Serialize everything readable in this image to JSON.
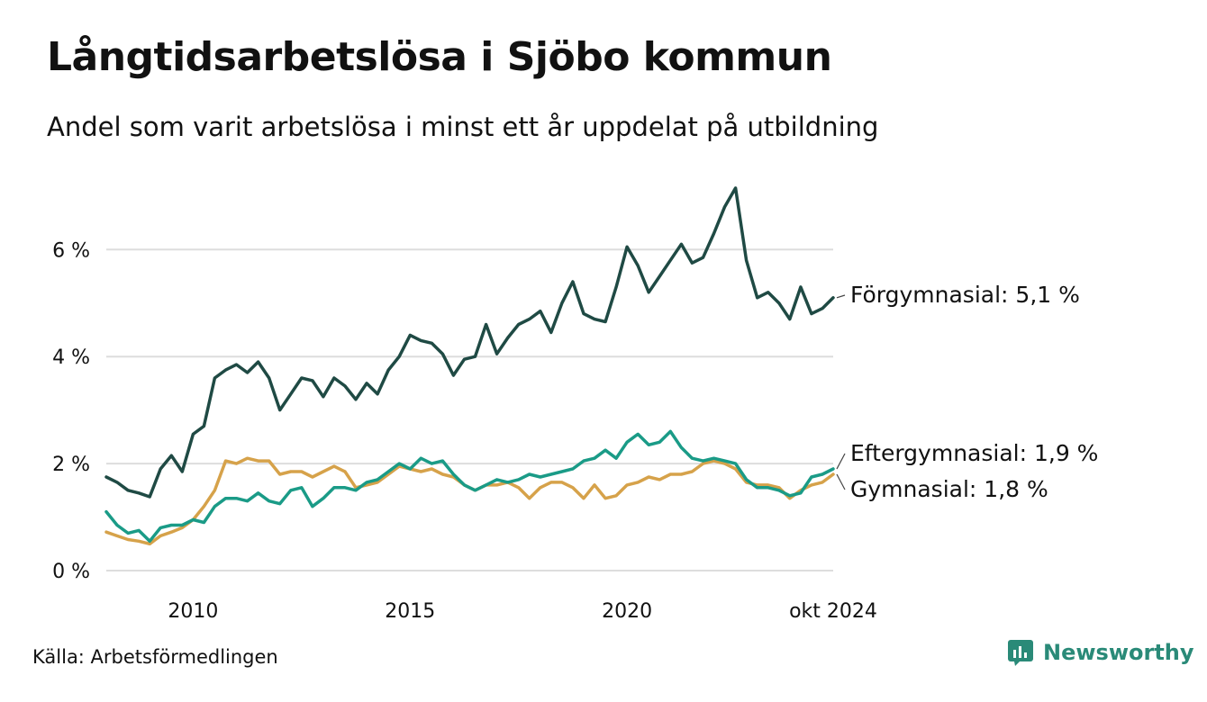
{
  "title": "Långtidsarbetslösa i Sjöbo kommun",
  "subtitle": "Andel som varit arbetslösa i minst ett år uppdelat på utbildning",
  "source": "Källa: Arbetsförmedlingen",
  "brand": "Newsworthy",
  "colors": {
    "forgymnasial": "#1f4a44",
    "eftergymnasial": "#1a9b87",
    "gymnasial": "#d6a24a",
    "grid": "#dddddd",
    "brand": "#2a8a78"
  },
  "chart_data": {
    "type": "line",
    "title": "Långtidsarbetslösa i Sjöbo kommun",
    "xlabel": "",
    "ylabel": "",
    "x_unit": "decimal year",
    "xlim": [
      2008.0,
      2024.75
    ],
    "ylim": [
      0,
      7.3
    ],
    "y_ticks": [
      0,
      2,
      4,
      6
    ],
    "y_tick_labels": [
      "0 %",
      "2 %",
      "4 %",
      "6 %"
    ],
    "x_ticks": [
      2010,
      2015,
      2020,
      2024.75
    ],
    "x_tick_labels": [
      "2010",
      "2015",
      "2020",
      "okt 2024"
    ],
    "grid": "horizontal",
    "legend": "direct labels at line ends",
    "series": [
      {
        "name": "Förgymnasial",
        "end_label": "Förgymnasial: 5,1 %",
        "color": "#1f4a44",
        "points": [
          [
            2008.0,
            1.75
          ],
          [
            2008.25,
            1.65
          ],
          [
            2008.5,
            1.5
          ],
          [
            2008.75,
            1.45
          ],
          [
            2009.0,
            1.38
          ],
          [
            2009.25,
            1.9
          ],
          [
            2009.5,
            2.15
          ],
          [
            2009.75,
            1.85
          ],
          [
            2010.0,
            2.55
          ],
          [
            2010.25,
            2.7
          ],
          [
            2010.5,
            3.6
          ],
          [
            2010.75,
            3.75
          ],
          [
            2011.0,
            3.85
          ],
          [
            2011.25,
            3.7
          ],
          [
            2011.5,
            3.9
          ],
          [
            2011.75,
            3.6
          ],
          [
            2012.0,
            3.0
          ],
          [
            2012.25,
            3.3
          ],
          [
            2012.5,
            3.6
          ],
          [
            2012.75,
            3.55
          ],
          [
            2013.0,
            3.25
          ],
          [
            2013.25,
            3.6
          ],
          [
            2013.5,
            3.45
          ],
          [
            2013.75,
            3.2
          ],
          [
            2014.0,
            3.5
          ],
          [
            2014.25,
            3.3
          ],
          [
            2014.5,
            3.75
          ],
          [
            2014.75,
            4.0
          ],
          [
            2015.0,
            4.4
          ],
          [
            2015.25,
            4.3
          ],
          [
            2015.5,
            4.25
          ],
          [
            2015.75,
            4.05
          ],
          [
            2016.0,
            3.65
          ],
          [
            2016.25,
            3.95
          ],
          [
            2016.5,
            4.0
          ],
          [
            2016.75,
            4.6
          ],
          [
            2017.0,
            4.05
          ],
          [
            2017.25,
            4.35
          ],
          [
            2017.5,
            4.6
          ],
          [
            2017.75,
            4.7
          ],
          [
            2018.0,
            4.85
          ],
          [
            2018.25,
            4.45
          ],
          [
            2018.5,
            5.0
          ],
          [
            2018.75,
            5.4
          ],
          [
            2019.0,
            4.8
          ],
          [
            2019.25,
            4.7
          ],
          [
            2019.5,
            4.65
          ],
          [
            2019.75,
            5.3
          ],
          [
            2020.0,
            6.05
          ],
          [
            2020.25,
            5.7
          ],
          [
            2020.5,
            5.2
          ],
          [
            2020.75,
            5.5
          ],
          [
            2021.0,
            5.8
          ],
          [
            2021.25,
            6.1
          ],
          [
            2021.5,
            5.75
          ],
          [
            2021.75,
            5.85
          ],
          [
            2022.0,
            6.3
          ],
          [
            2022.25,
            6.8
          ],
          [
            2022.5,
            7.15
          ],
          [
            2022.75,
            5.8
          ],
          [
            2023.0,
            5.1
          ],
          [
            2023.25,
            5.2
          ],
          [
            2023.5,
            5.0
          ],
          [
            2023.75,
            4.7
          ],
          [
            2024.0,
            5.3
          ],
          [
            2024.25,
            4.8
          ],
          [
            2024.5,
            4.9
          ],
          [
            2024.75,
            5.1
          ]
        ]
      },
      {
        "name": "Eftergymnasial",
        "end_label": "Eftergymnasial: 1,9 %",
        "color": "#1a9b87",
        "points": [
          [
            2008.0,
            1.1
          ],
          [
            2008.25,
            0.85
          ],
          [
            2008.5,
            0.7
          ],
          [
            2008.75,
            0.75
          ],
          [
            2009.0,
            0.55
          ],
          [
            2009.25,
            0.8
          ],
          [
            2009.5,
            0.85
          ],
          [
            2009.75,
            0.85
          ],
          [
            2010.0,
            0.95
          ],
          [
            2010.25,
            0.9
          ],
          [
            2010.5,
            1.2
          ],
          [
            2010.75,
            1.35
          ],
          [
            2011.0,
            1.35
          ],
          [
            2011.25,
            1.3
          ],
          [
            2011.5,
            1.45
          ],
          [
            2011.75,
            1.3
          ],
          [
            2012.0,
            1.25
          ],
          [
            2012.25,
            1.5
          ],
          [
            2012.5,
            1.55
          ],
          [
            2012.75,
            1.2
          ],
          [
            2013.0,
            1.35
          ],
          [
            2013.25,
            1.55
          ],
          [
            2013.5,
            1.55
          ],
          [
            2013.75,
            1.5
          ],
          [
            2014.0,
            1.65
          ],
          [
            2014.25,
            1.7
          ],
          [
            2014.5,
            1.85
          ],
          [
            2014.75,
            2.0
          ],
          [
            2015.0,
            1.9
          ],
          [
            2015.25,
            2.1
          ],
          [
            2015.5,
            2.0
          ],
          [
            2015.75,
            2.05
          ],
          [
            2016.0,
            1.8
          ],
          [
            2016.25,
            1.6
          ],
          [
            2016.5,
            1.5
          ],
          [
            2016.75,
            1.6
          ],
          [
            2017.0,
            1.7
          ],
          [
            2017.25,
            1.65
          ],
          [
            2017.5,
            1.7
          ],
          [
            2017.75,
            1.8
          ],
          [
            2018.0,
            1.75
          ],
          [
            2018.25,
            1.8
          ],
          [
            2018.5,
            1.85
          ],
          [
            2018.75,
            1.9
          ],
          [
            2019.0,
            2.05
          ],
          [
            2019.25,
            2.1
          ],
          [
            2019.5,
            2.25
          ],
          [
            2019.75,
            2.1
          ],
          [
            2020.0,
            2.4
          ],
          [
            2020.25,
            2.55
          ],
          [
            2020.5,
            2.35
          ],
          [
            2020.75,
            2.4
          ],
          [
            2021.0,
            2.6
          ],
          [
            2021.25,
            2.3
          ],
          [
            2021.5,
            2.1
          ],
          [
            2021.75,
            2.05
          ],
          [
            2022.0,
            2.1
          ],
          [
            2022.25,
            2.05
          ],
          [
            2022.5,
            2.0
          ],
          [
            2022.75,
            1.7
          ],
          [
            2023.0,
            1.55
          ],
          [
            2023.25,
            1.55
          ],
          [
            2023.5,
            1.5
          ],
          [
            2023.75,
            1.4
          ],
          [
            2024.0,
            1.45
          ],
          [
            2024.25,
            1.75
          ],
          [
            2024.5,
            1.8
          ],
          [
            2024.75,
            1.9
          ]
        ]
      },
      {
        "name": "Gymnasial",
        "end_label": "Gymnasial: 1,8 %",
        "color": "#d6a24a",
        "points": [
          [
            2008.0,
            0.72
          ],
          [
            2008.25,
            0.65
          ],
          [
            2008.5,
            0.58
          ],
          [
            2008.75,
            0.55
          ],
          [
            2009.0,
            0.5
          ],
          [
            2009.25,
            0.65
          ],
          [
            2009.5,
            0.72
          ],
          [
            2009.75,
            0.8
          ],
          [
            2010.0,
            0.95
          ],
          [
            2010.25,
            1.2
          ],
          [
            2010.5,
            1.5
          ],
          [
            2010.75,
            2.05
          ],
          [
            2011.0,
            2.0
          ],
          [
            2011.25,
            2.1
          ],
          [
            2011.5,
            2.05
          ],
          [
            2011.75,
            2.05
          ],
          [
            2012.0,
            1.8
          ],
          [
            2012.25,
            1.85
          ],
          [
            2012.5,
            1.85
          ],
          [
            2012.75,
            1.75
          ],
          [
            2013.0,
            1.85
          ],
          [
            2013.25,
            1.95
          ],
          [
            2013.5,
            1.85
          ],
          [
            2013.75,
            1.55
          ],
          [
            2014.0,
            1.6
          ],
          [
            2014.25,
            1.65
          ],
          [
            2014.5,
            1.8
          ],
          [
            2014.75,
            1.95
          ],
          [
            2015.0,
            1.9
          ],
          [
            2015.25,
            1.85
          ],
          [
            2015.5,
            1.9
          ],
          [
            2015.75,
            1.8
          ],
          [
            2016.0,
            1.75
          ],
          [
            2016.25,
            1.6
          ],
          [
            2016.5,
            1.5
          ],
          [
            2016.75,
            1.6
          ],
          [
            2017.0,
            1.6
          ],
          [
            2017.25,
            1.65
          ],
          [
            2017.5,
            1.55
          ],
          [
            2017.75,
            1.35
          ],
          [
            2018.0,
            1.55
          ],
          [
            2018.25,
            1.65
          ],
          [
            2018.5,
            1.65
          ],
          [
            2018.75,
            1.55
          ],
          [
            2019.0,
            1.35
          ],
          [
            2019.25,
            1.6
          ],
          [
            2019.5,
            1.35
          ],
          [
            2019.75,
            1.4
          ],
          [
            2020.0,
            1.6
          ],
          [
            2020.25,
            1.65
          ],
          [
            2020.5,
            1.75
          ],
          [
            2020.75,
            1.7
          ],
          [
            2021.0,
            1.8
          ],
          [
            2021.25,
            1.8
          ],
          [
            2021.5,
            1.85
          ],
          [
            2021.75,
            2.0
          ],
          [
            2022.0,
            2.05
          ],
          [
            2022.25,
            2.0
          ],
          [
            2022.5,
            1.9
          ],
          [
            2022.75,
            1.65
          ],
          [
            2023.0,
            1.6
          ],
          [
            2023.25,
            1.6
          ],
          [
            2023.5,
            1.55
          ],
          [
            2023.75,
            1.35
          ],
          [
            2024.0,
            1.5
          ],
          [
            2024.25,
            1.6
          ],
          [
            2024.5,
            1.65
          ],
          [
            2024.75,
            1.8
          ]
        ]
      }
    ]
  }
}
